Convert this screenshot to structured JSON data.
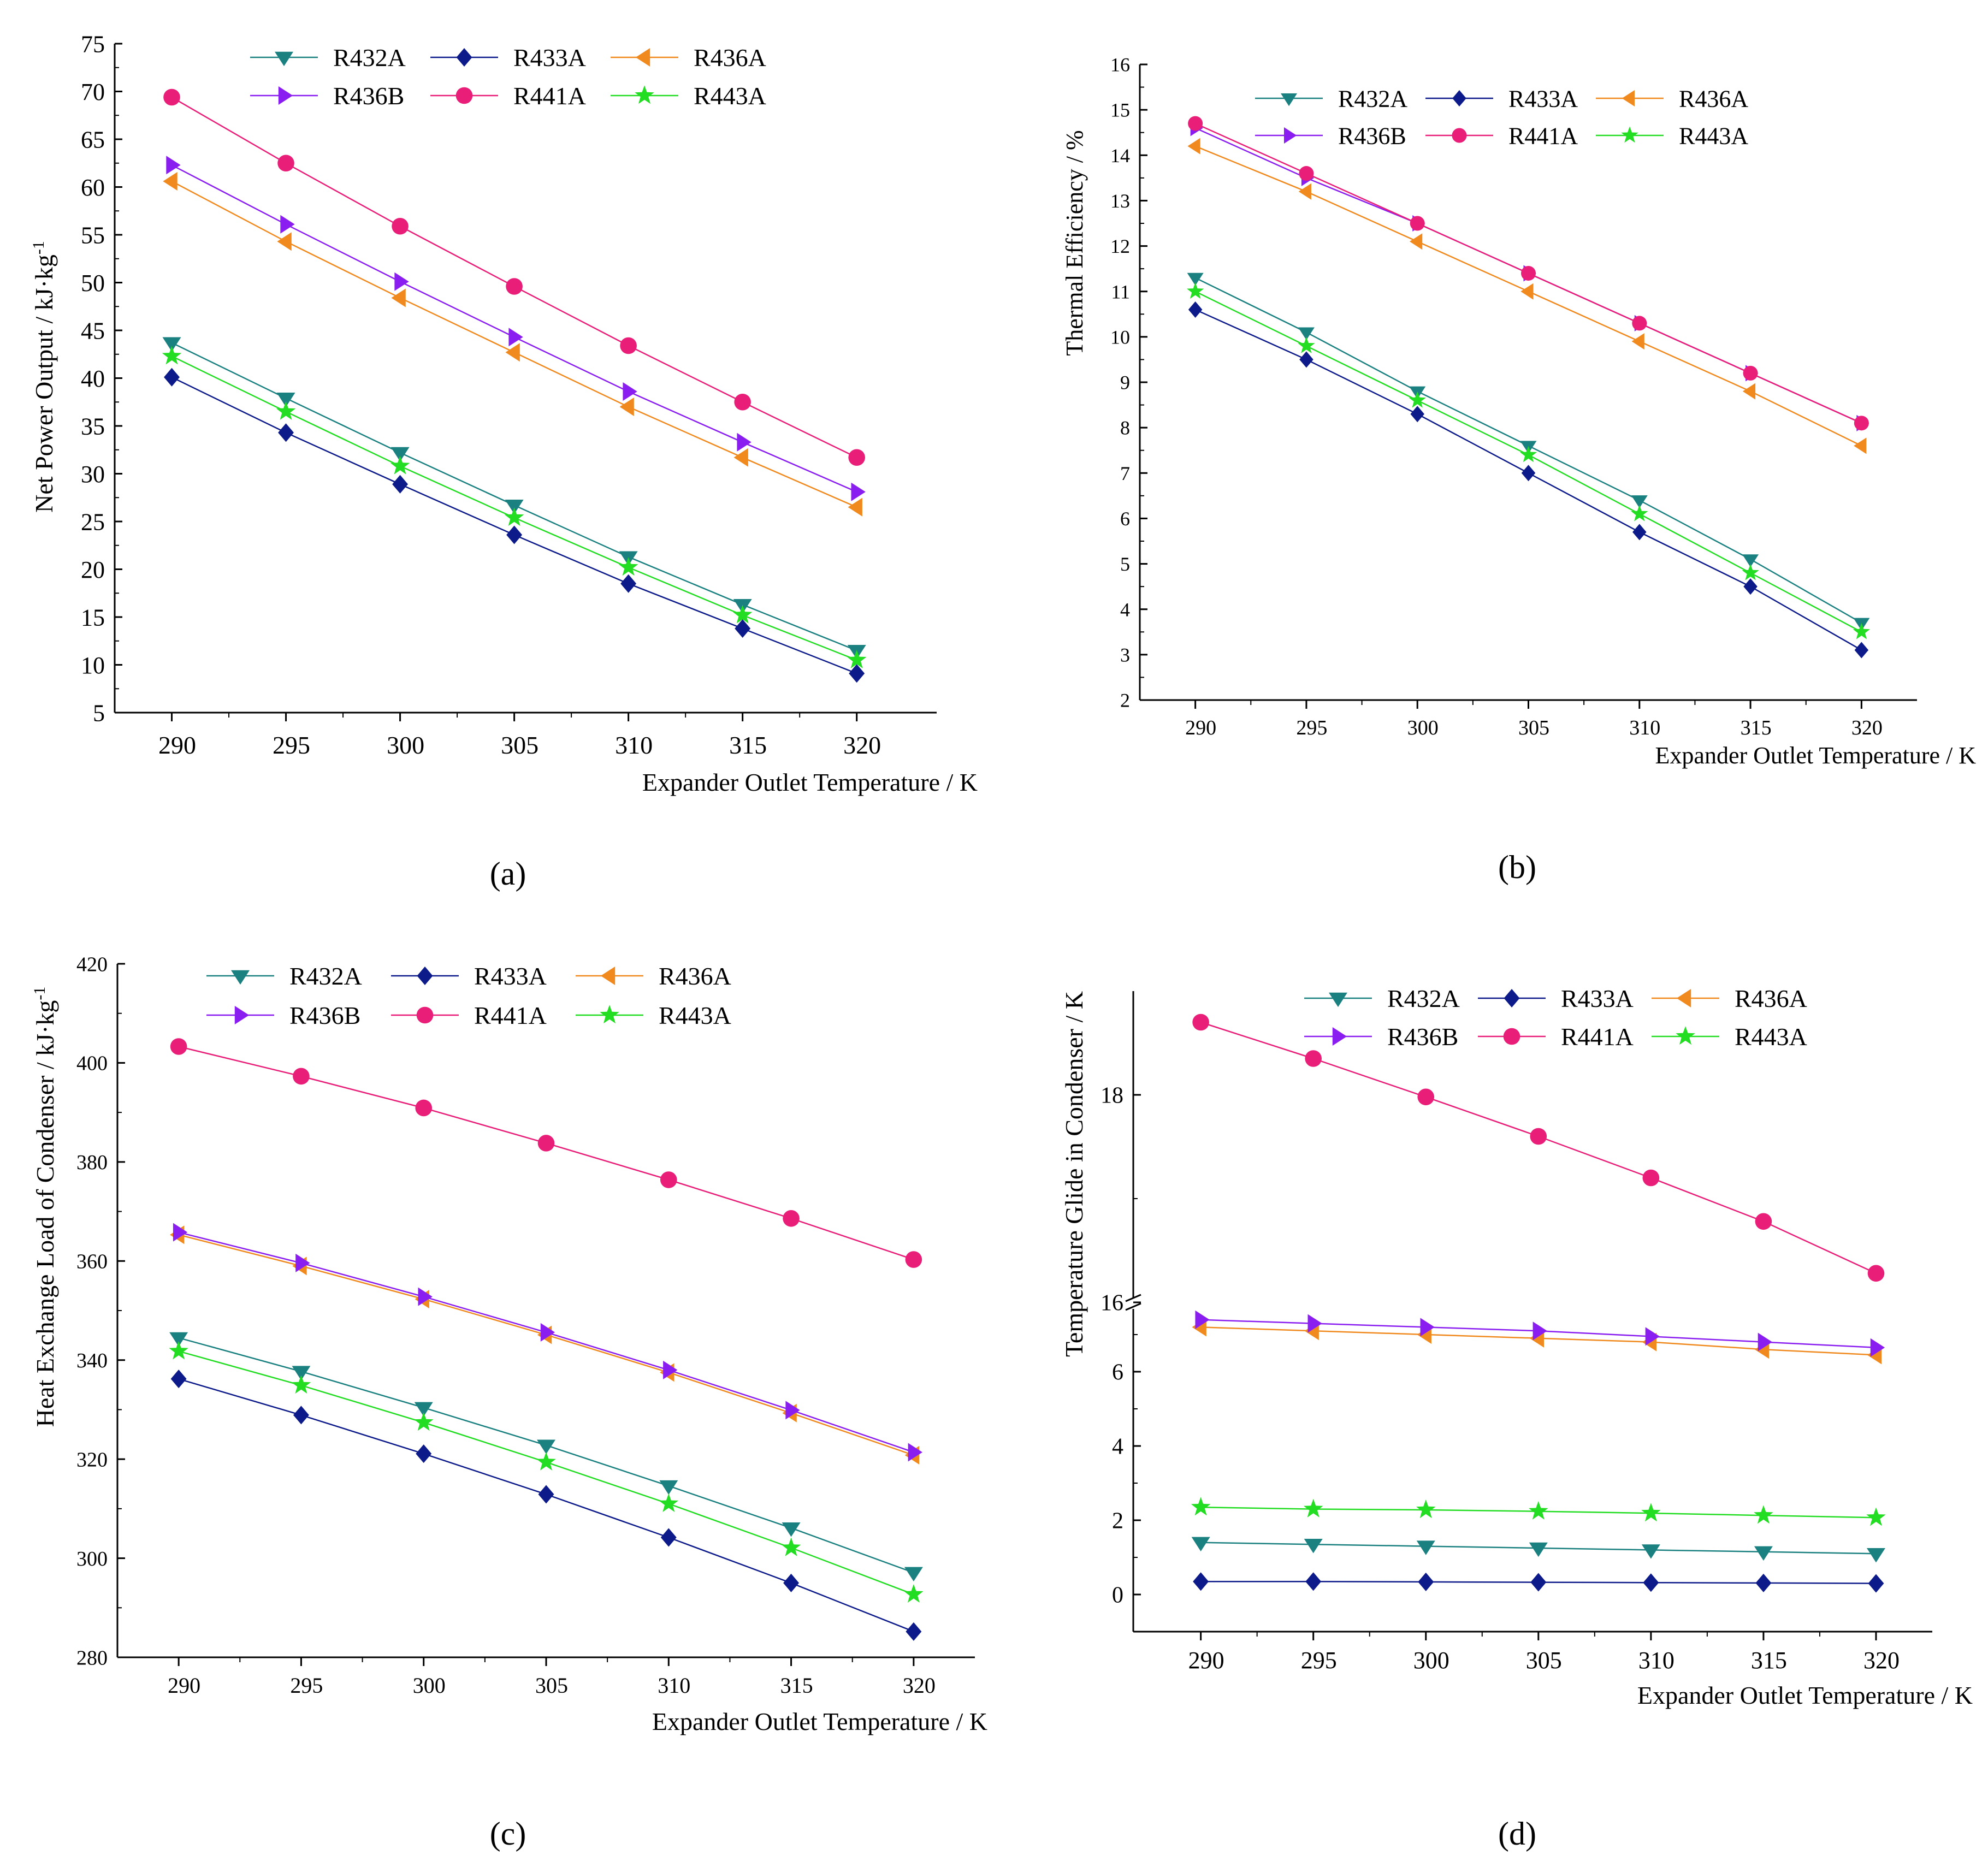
{
  "colors": {
    "R432A": "#1a8080",
    "R433A": "#0d1a8a",
    "R436A": "#f08a1e",
    "R436B": "#8a1ef0",
    "R441A": "#e81e78",
    "R443A": "#22dd22",
    "axis": "#000000"
  },
  "chart_data": [
    {
      "id": "a",
      "caption": "(a)",
      "type": "line",
      "xlabel": "Expander Outlet Temperature / K",
      "ylabel": "Net Power Output / kJ·kg",
      "ylabel_sup": "-1",
      "x": [
        290,
        295,
        300,
        305,
        310,
        315,
        320
      ],
      "xticks": [
        "290",
        "295",
        "300",
        "305",
        "310",
        "315",
        "320"
      ],
      "xlim": [
        287.5,
        323.5
      ],
      "ylim": [
        5,
        75
      ],
      "yticks": [
        5,
        10,
        15,
        20,
        25,
        30,
        35,
        40,
        45,
        50,
        55,
        60,
        65,
        70,
        75
      ],
      "yticklabels": [
        "5",
        "10",
        "15",
        "20",
        "25",
        "30",
        "35",
        "40",
        "45",
        "50",
        "55",
        "60",
        "65",
        "70",
        "75"
      ],
      "legend": [
        "R432A",
        "R433A",
        "R436A",
        "R436B",
        "R441A",
        "R443A"
      ],
      "series": [
        {
          "name": "R432A",
          "marker": "tri-down",
          "values": [
            43.7,
            37.9,
            32.2,
            26.7,
            21.3,
            16.3,
            11.5
          ]
        },
        {
          "name": "R433A",
          "marker": "diamond",
          "values": [
            40.1,
            34.3,
            28.9,
            23.6,
            18.5,
            13.8,
            9.1
          ]
        },
        {
          "name": "R436A",
          "marker": "tri-left",
          "values": [
            60.6,
            54.3,
            48.4,
            42.7,
            37.0,
            31.7,
            26.5
          ]
        },
        {
          "name": "R436B",
          "marker": "tri-right",
          "values": [
            62.3,
            56.1,
            50.1,
            44.3,
            38.6,
            33.3,
            28.1
          ]
        },
        {
          "name": "R441A",
          "marker": "circle",
          "values": [
            69.4,
            62.5,
            55.9,
            49.6,
            43.4,
            37.5,
            31.7
          ]
        },
        {
          "name": "R443A",
          "marker": "star",
          "values": [
            42.3,
            36.5,
            30.8,
            25.4,
            20.2,
            15.2,
            10.5
          ]
        }
      ]
    },
    {
      "id": "b",
      "caption": "(b)",
      "type": "line",
      "xlabel": "Expander Outlet Temperature / K",
      "ylabel": "Thermal Efficiency / %",
      "x": [
        290,
        295,
        300,
        305,
        310,
        315,
        320
      ],
      "xticks": [
        "290",
        "295",
        "300",
        "305",
        "310",
        "315",
        "320"
      ],
      "xlim": [
        287.5,
        322.5
      ],
      "ylim": [
        2,
        16
      ],
      "yticks": [
        2,
        3,
        4,
        5,
        6,
        7,
        8,
        9,
        10,
        11,
        12,
        13,
        14,
        15,
        16
      ],
      "yticklabels": [
        "2",
        "3",
        "4",
        "5",
        "6",
        "7",
        "8",
        "9",
        "10",
        "11",
        "12",
        "13",
        "14",
        "15",
        "16"
      ],
      "legend": [
        "R432A",
        "R433A",
        "R436A",
        "R436B",
        "R441A",
        "R443A"
      ],
      "series": [
        {
          "name": "R432A",
          "marker": "tri-down",
          "values": [
            11.3,
            10.1,
            8.8,
            7.6,
            6.4,
            5.1,
            3.7
          ]
        },
        {
          "name": "R433A",
          "marker": "diamond",
          "values": [
            10.6,
            9.5,
            8.3,
            7.0,
            5.7,
            4.5,
            3.1
          ]
        },
        {
          "name": "R436A",
          "marker": "tri-left",
          "values": [
            14.2,
            13.2,
            12.1,
            11.0,
            9.9,
            8.8,
            7.6
          ]
        },
        {
          "name": "R436B",
          "marker": "tri-right",
          "values": [
            14.6,
            13.5,
            12.5,
            11.4,
            10.3,
            9.2,
            8.1
          ]
        },
        {
          "name": "R441A",
          "marker": "circle",
          "values": [
            14.7,
            13.6,
            12.5,
            11.4,
            10.3,
            9.2,
            8.1
          ]
        },
        {
          "name": "R443A",
          "marker": "star",
          "values": [
            11.0,
            9.8,
            8.6,
            7.4,
            6.1,
            4.8,
            3.5
          ]
        }
      ]
    },
    {
      "id": "c",
      "caption": "(c)",
      "type": "line",
      "xlabel": "Expander Outlet Temperature / K",
      "ylabel": "Heat Exchange Load of Condenser / kJ·kg",
      "ylabel_sup": "-1",
      "x": [
        290,
        295,
        300,
        305,
        310,
        315,
        320
      ],
      "xticks": [
        "290",
        "295",
        "300",
        "305",
        "310",
        "315",
        "320"
      ],
      "xlim": [
        287.5,
        322.5
      ],
      "ylim": [
        280,
        420
      ],
      "yticks": [
        280,
        300,
        320,
        340,
        360,
        380,
        400,
        420
      ],
      "yticklabels": [
        "280",
        "300",
        "320",
        "340",
        "360",
        "380",
        "400",
        "420"
      ],
      "legend": [
        "R432A",
        "R433A",
        "R436A",
        "R436B",
        "R441A",
        "R443A"
      ],
      "series": [
        {
          "name": "R432A",
          "marker": "tri-down",
          "values": [
            344.5,
            337.7,
            330.4,
            322.8,
            314.6,
            306.1,
            297.1
          ]
        },
        {
          "name": "R433A",
          "marker": "diamond",
          "values": [
            336.2,
            328.9,
            321.1,
            312.9,
            304.2,
            295.0,
            285.2
          ]
        },
        {
          "name": "R436A",
          "marker": "tri-left",
          "values": [
            365.3,
            359.0,
            352.3,
            345.1,
            337.5,
            329.3,
            320.8
          ]
        },
        {
          "name": "R436B",
          "marker": "tri-right",
          "values": [
            365.8,
            359.6,
            352.8,
            345.6,
            338.0,
            329.9,
            321.4
          ]
        },
        {
          "name": "R441A",
          "marker": "circle",
          "values": [
            403.3,
            397.3,
            390.9,
            383.8,
            376.4,
            368.6,
            360.3
          ]
        },
        {
          "name": "R443A",
          "marker": "star",
          "values": [
            341.8,
            334.9,
            327.4,
            319.4,
            311.0,
            302.1,
            292.7
          ]
        }
      ]
    },
    {
      "id": "d",
      "caption": "(d)",
      "type": "line",
      "xlabel": "Expander Outlet Temperature / K",
      "ylabel": "Temperature Glide in Condenser / K",
      "x": [
        290,
        295,
        300,
        305,
        310,
        315,
        320
      ],
      "xticks": [
        "290",
        "295",
        "300",
        "305",
        "310",
        "315",
        "320"
      ],
      "xlim": [
        287,
        322.5
      ],
      "axis_break": {
        "lower_range": [
          -1,
          7.5
        ],
        "upper_range": [
          16,
          19
        ]
      },
      "yticks": [
        0,
        2,
        4,
        6,
        16,
        18
      ],
      "yticklabels": [
        "0",
        "2",
        "4",
        "6",
        "16",
        "18"
      ],
      "legend": [
        "R432A",
        "R433A",
        "R436A",
        "R436B",
        "R441A",
        "R443A"
      ],
      "series": [
        {
          "name": "R432A",
          "marker": "tri-down",
          "values": [
            1.4,
            1.35,
            1.3,
            1.25,
            1.2,
            1.15,
            1.1
          ]
        },
        {
          "name": "R433A",
          "marker": "diamond",
          "values": [
            0.35,
            0.35,
            0.34,
            0.33,
            0.32,
            0.31,
            0.3
          ]
        },
        {
          "name": "R436A",
          "marker": "tri-left",
          "values": [
            7.2,
            7.1,
            7.0,
            6.9,
            6.8,
            6.6,
            6.45
          ]
        },
        {
          "name": "R436B",
          "marker": "tri-right",
          "values": [
            7.4,
            7.3,
            7.2,
            7.1,
            6.95,
            6.8,
            6.65
          ]
        },
        {
          "name": "R441A",
          "marker": "circle",
          "values": [
            18.7,
            18.35,
            17.98,
            17.6,
            17.2,
            16.78,
            16.28
          ]
        },
        {
          "name": "R443A",
          "marker": "star",
          "values": [
            2.35,
            2.3,
            2.28,
            2.24,
            2.19,
            2.13,
            2.07
          ]
        }
      ]
    }
  ]
}
